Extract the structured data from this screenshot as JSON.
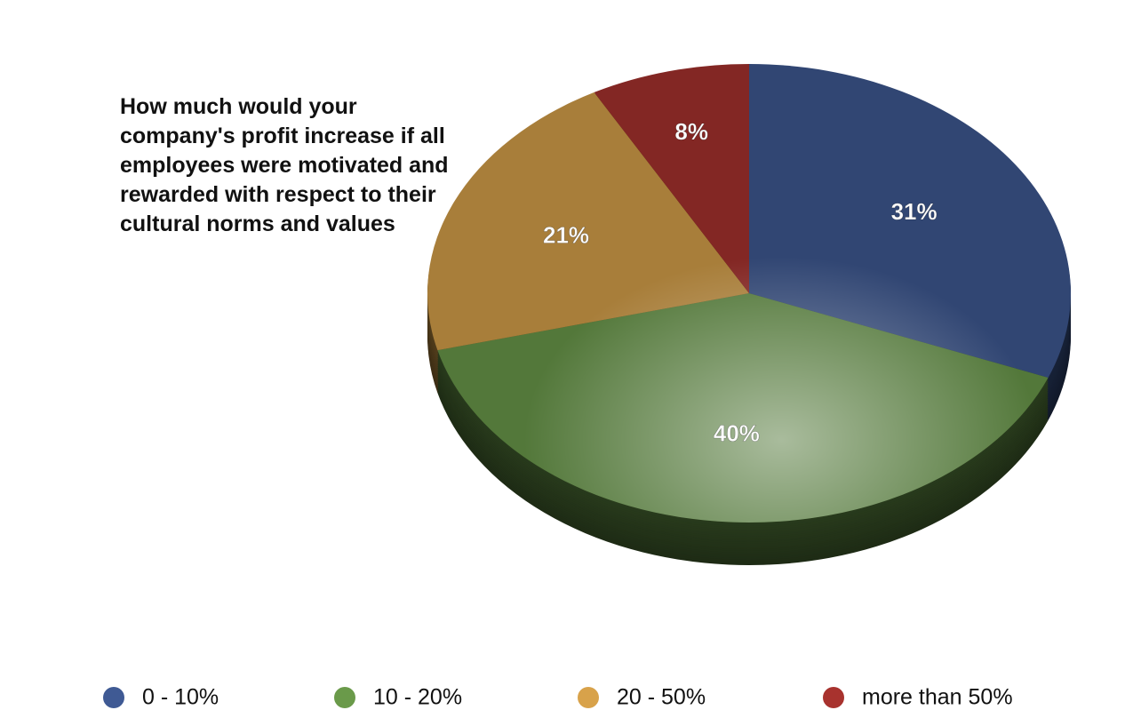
{
  "chart_data": {
    "type": "pie",
    "title": "How much would your company's profit increase if all employees were motivated and rewarded with respect to their cultural norms and values",
    "categories": [
      "0 - 10%",
      "10 - 20%",
      "20 - 50%",
      "more than 50%"
    ],
    "values": [
      31,
      40,
      21,
      8
    ],
    "value_labels": [
      "31%",
      "40%",
      "21%",
      "8%"
    ],
    "colors": [
      "#3f5a94",
      "#6a9a4a",
      "#d8a24a",
      "#a8322e"
    ],
    "legend": "bottom"
  }
}
